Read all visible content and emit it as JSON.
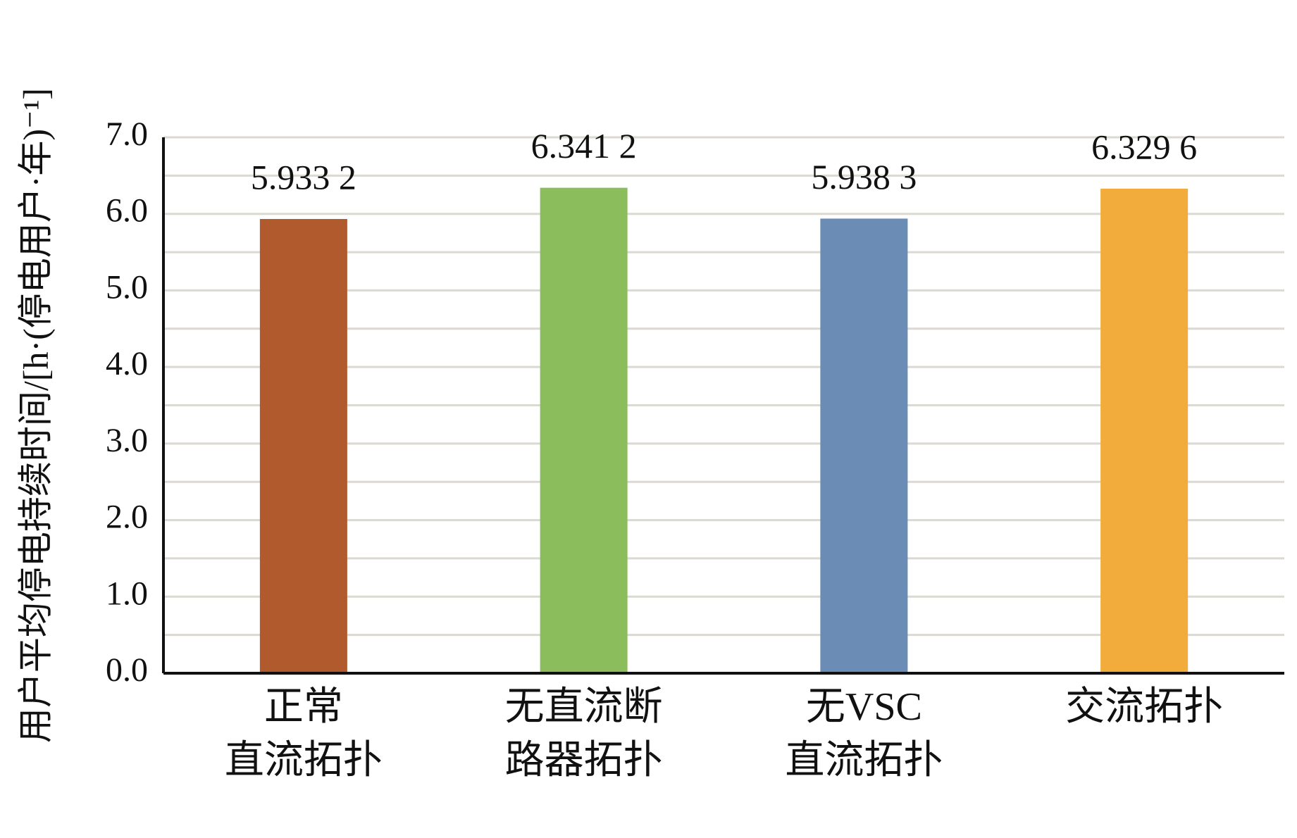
{
  "chart_data": {
    "type": "bar",
    "y_label": "用户平均停电持续时间/[h·(停电用户·年)⁻¹]",
    "categories": [
      "正常\n直流拓扑",
      "无直流断\n路器拓扑",
      "无VSC\n直流拓扑",
      "交流拓扑"
    ],
    "values": [
      5.9332,
      6.3412,
      5.9383,
      6.3296
    ],
    "value_labels": [
      "5.933 2",
      "6.341 2",
      "5.938 3",
      "6.329 6"
    ],
    "colors": [
      "#b05a2e",
      "#8bbd5c",
      "#6b8db5",
      "#f2ac3c"
    ],
    "ylim": [
      0,
      7
    ],
    "yticks": [
      {
        "value": 0,
        "label": "0.0"
      },
      {
        "value": 1,
        "label": "1.0"
      },
      {
        "value": 2,
        "label": "2.0"
      },
      {
        "value": 3,
        "label": "3.0"
      },
      {
        "value": 4,
        "label": "4.0"
      },
      {
        "value": 5,
        "label": "5.0"
      },
      {
        "value": 6,
        "label": "6.0"
      },
      {
        "value": 7,
        "label": "7.0"
      }
    ],
    "minor_yticks": [
      0.5,
      1.5,
      2.5,
      3.5,
      4.5,
      5.5,
      6.5
    ],
    "grid": true
  }
}
